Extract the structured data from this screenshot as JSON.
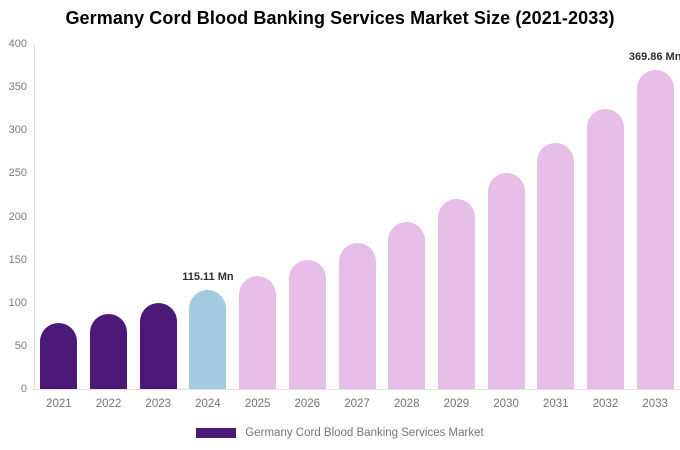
{
  "title": "Germany Cord Blood Banking Services Market Size (2021-2033)",
  "chart_data": {
    "type": "bar",
    "title": "Germany Cord Blood Banking Services Market Size (2021-2033)",
    "xlabel": "",
    "ylabel": "",
    "unit": "Mn",
    "categories": [
      "2021",
      "2022",
      "2023",
      "2024",
      "2025",
      "2026",
      "2027",
      "2028",
      "2029",
      "2030",
      "2031",
      "2032",
      "2033"
    ],
    "values": [
      76.9,
      87.3,
      99.4,
      115.11,
      131.0,
      149.2,
      169.8,
      193.3,
      220.1,
      250.5,
      285.2,
      324.7,
      369.86
    ],
    "bar_colors": [
      "#4D1979",
      "#4D1979",
      "#4D1979",
      "#A3CBE0",
      "#E6BEE8",
      "#E6BEE8",
      "#E6BEE8",
      "#E6BEE8",
      "#E6BEE8",
      "#E6BEE8",
      "#E6BEE8",
      "#E6BEE8",
      "#E6BEE8"
    ],
    "ylim": [
      0,
      400
    ],
    "yticks": [
      0,
      50,
      100,
      150,
      200,
      250,
      300,
      350,
      400
    ],
    "grid": false,
    "legend": {
      "label": "Germany Cord Blood Banking Services Market",
      "position": "bottom",
      "swatch_color": "#4D1979"
    },
    "annotations": [
      {
        "category": "2024",
        "text": "115.11 Mn"
      },
      {
        "category": "2033",
        "text": "369.86 Mn"
      }
    ]
  },
  "colors": {
    "historical_bar": "#4D1979",
    "current_year_bar": "#A3CBE0",
    "forecast_bar": "#E6BEE8",
    "axis_line": "#DEDEDE",
    "tick_text": "#7A7A7A",
    "data_label_text": "#2E2E2E",
    "legend_text": "#757575",
    "title_text": "#000000",
    "background": "#FFFFFF"
  }
}
